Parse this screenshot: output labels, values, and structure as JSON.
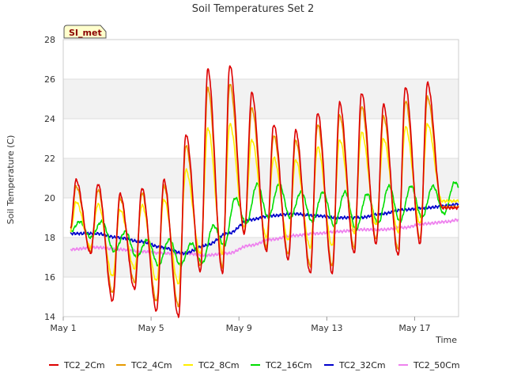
{
  "chart_data": {
    "type": "line",
    "title": "Soil Temperatures Set 2",
    "xlabel": "Time",
    "ylabel": "Soil Temperature (C)",
    "badge": "SI_met",
    "ylim": [
      14,
      28
    ],
    "yticks": [
      14,
      16,
      18,
      20,
      22,
      24,
      26,
      28
    ],
    "xlim": [
      "2024-05-01",
      "2024-05-19"
    ],
    "xticks": [
      {
        "date": "2024-05-01",
        "label": "May 1"
      },
      {
        "date": "2024-05-05",
        "label": "May 5"
      },
      {
        "date": "2024-05-09",
        "label": "May 9"
      },
      {
        "date": "2024-05-13",
        "label": "May 13"
      },
      {
        "date": "2024-05-17",
        "label": "May 17"
      }
    ],
    "grid": true,
    "legend_position": "bottom",
    "colors": {
      "band": "#f2f2f2",
      "grid": "#dddddd",
      "badge_fill": "#ffffcc"
    },
    "daily": {
      "dates": [
        "2024-05-01",
        "2024-05-02",
        "2024-05-03",
        "2024-05-04",
        "2024-05-05",
        "2024-05-06",
        "2024-05-07",
        "2024-05-08",
        "2024-05-09",
        "2024-05-10",
        "2024-05-11",
        "2024-05-12",
        "2024-05-13",
        "2024-05-14",
        "2024-05-15",
        "2024-05-16",
        "2024-05-17",
        "2024-05-18"
      ],
      "fields": [
        "max",
        "min"
      ]
    },
    "series": [
      {
        "name": "TC2_2Cm",
        "color": "#dd0000",
        "amp_frac": 1.0,
        "x": [
          "2024-05-01 08:00",
          "2024-05-01 14:00",
          "2024-05-02 06:00",
          "2024-05-02 14:00",
          "2024-05-03 06:00",
          "2024-05-03 14:00",
          "2024-05-04 06:00",
          "2024-05-04 14:00",
          "2024-05-05 06:00",
          "2024-05-05 14:00",
          "2024-05-06 06:00",
          "2024-05-06 14:00",
          "2024-05-07 06:00",
          "2024-05-07 14:00",
          "2024-05-08 06:00",
          "2024-05-08 14:00",
          "2024-05-09 06:00",
          "2024-05-09 14:00",
          "2024-05-10 06:00",
          "2024-05-10 14:00",
          "2024-05-11 06:00",
          "2024-05-11 14:00",
          "2024-05-12 06:00",
          "2024-05-12 14:00",
          "2024-05-13 06:00",
          "2024-05-13 14:00",
          "2024-05-14 06:00",
          "2024-05-14 14:00",
          "2024-05-15 06:00",
          "2024-05-15 14:00",
          "2024-05-16 06:00",
          "2024-05-16 14:00",
          "2024-05-17 06:00",
          "2024-05-17 14:00",
          "2024-05-18 06:00",
          "2024-05-18 14:00",
          "2024-05-19 00:00"
        ],
        "y": [
          18.5,
          20.9,
          17.2,
          20.7,
          14.8,
          20.2,
          15.4,
          20.5,
          14.3,
          20.9,
          14.0,
          23.2,
          16.3,
          26.5,
          16.2,
          26.7,
          18.2,
          25.3,
          17.3,
          23.7,
          16.9,
          23.4,
          16.2,
          24.3,
          16.2,
          24.8,
          17.2,
          25.3,
          17.7,
          24.7,
          17.1,
          25.6,
          17.7,
          25.8,
          19.5,
          19.5,
          19.5
        ]
      },
      {
        "name": "TC2_4Cm",
        "color": "#e69900",
        "amp_frac": 0.88,
        "x": [
          "2024-05-01 08:00",
          "2024-05-19 00:00"
        ],
        "y": [
          18.2,
          19.8
        ]
      },
      {
        "name": "TC2_8Cm",
        "color": "#ffee00",
        "amp_frac": 0.62,
        "x": [
          "2024-05-01 08:00",
          "2024-05-19 00:00"
        ],
        "y": [
          18.0,
          20.4
        ]
      },
      {
        "name": "TC2_16Cm",
        "color": "#00dd00",
        "x": [
          "2024-05-01 08:00",
          "2024-05-01 18:00",
          "2024-05-02 06:00",
          "2024-05-02 18:00",
          "2024-05-03 08:00",
          "2024-05-03 20:00",
          "2024-05-04 08:00",
          "2024-05-04 20:00",
          "2024-05-05 08:00",
          "2024-05-05 20:00",
          "2024-05-06 08:00",
          "2024-05-06 20:00",
          "2024-05-07 08:00",
          "2024-05-07 20:00",
          "2024-05-08 08:00",
          "2024-05-08 20:00",
          "2024-05-09 08:00",
          "2024-05-09 20:00",
          "2024-05-10 08:00",
          "2024-05-10 20:00",
          "2024-05-11 08:00",
          "2024-05-11 20:00",
          "2024-05-12 08:00",
          "2024-05-12 20:00",
          "2024-05-13 08:00",
          "2024-05-13 20:00",
          "2024-05-14 08:00",
          "2024-05-14 20:00",
          "2024-05-15 08:00",
          "2024-05-15 20:00",
          "2024-05-16 08:00",
          "2024-05-16 20:00",
          "2024-05-17 08:00",
          "2024-05-17 20:00",
          "2024-05-18 08:00",
          "2024-05-18 20:00",
          "2024-05-19 00:00"
        ],
        "y": [
          18.3,
          18.8,
          18.0,
          18.8,
          17.3,
          18.3,
          17.0,
          17.9,
          16.6,
          17.9,
          16.6,
          17.7,
          16.7,
          18.6,
          17.6,
          20.0,
          18.7,
          20.7,
          19.0,
          20.7,
          19.0,
          20.3,
          18.8,
          20.3,
          18.6,
          20.3,
          18.4,
          20.2,
          18.7,
          20.6,
          18.8,
          20.6,
          19.0,
          20.6,
          19.2,
          20.8,
          20.6
        ]
      },
      {
        "name": "TC2_32Cm",
        "color": "#0000cc",
        "x": [
          "2024-05-01 08:00",
          "2024-05-02 12:00",
          "2024-05-03 12:00",
          "2024-05-04 12:00",
          "2024-05-05 12:00",
          "2024-05-06 12:00",
          "2024-05-07 12:00",
          "2024-05-08 12:00",
          "2024-05-09 12:00",
          "2024-05-10 12:00",
          "2024-05-11 12:00",
          "2024-05-12 12:00",
          "2024-05-13 12:00",
          "2024-05-14 12:00",
          "2024-05-15 12:00",
          "2024-05-16 12:00",
          "2024-05-17 12:00",
          "2024-05-18 12:00",
          "2024-05-19 00:00"
        ],
        "y": [
          18.2,
          18.2,
          18.0,
          17.8,
          17.5,
          17.2,
          17.6,
          18.2,
          18.9,
          19.1,
          19.2,
          19.1,
          19.0,
          19.0,
          19.2,
          19.4,
          19.5,
          19.6,
          19.7
        ]
      },
      {
        "name": "TC2_50Cm",
        "color": "#ee82ee",
        "x": [
          "2024-05-01 08:00",
          "2024-05-02 12:00",
          "2024-05-03 12:00",
          "2024-05-04 12:00",
          "2024-05-05 12:00",
          "2024-05-06 12:00",
          "2024-05-07 12:00",
          "2024-05-08 12:00",
          "2024-05-09 12:00",
          "2024-05-10 12:00",
          "2024-05-11 12:00",
          "2024-05-12 12:00",
          "2024-05-13 12:00",
          "2024-05-14 12:00",
          "2024-05-15 12:00",
          "2024-05-16 12:00",
          "2024-05-17 12:00",
          "2024-05-18 12:00",
          "2024-05-19 00:00"
        ],
        "y": [
          17.4,
          17.5,
          17.4,
          17.3,
          17.2,
          17.2,
          17.1,
          17.2,
          17.6,
          17.9,
          18.1,
          18.2,
          18.3,
          18.4,
          18.4,
          18.5,
          18.7,
          18.8,
          18.9
        ]
      }
    ]
  }
}
